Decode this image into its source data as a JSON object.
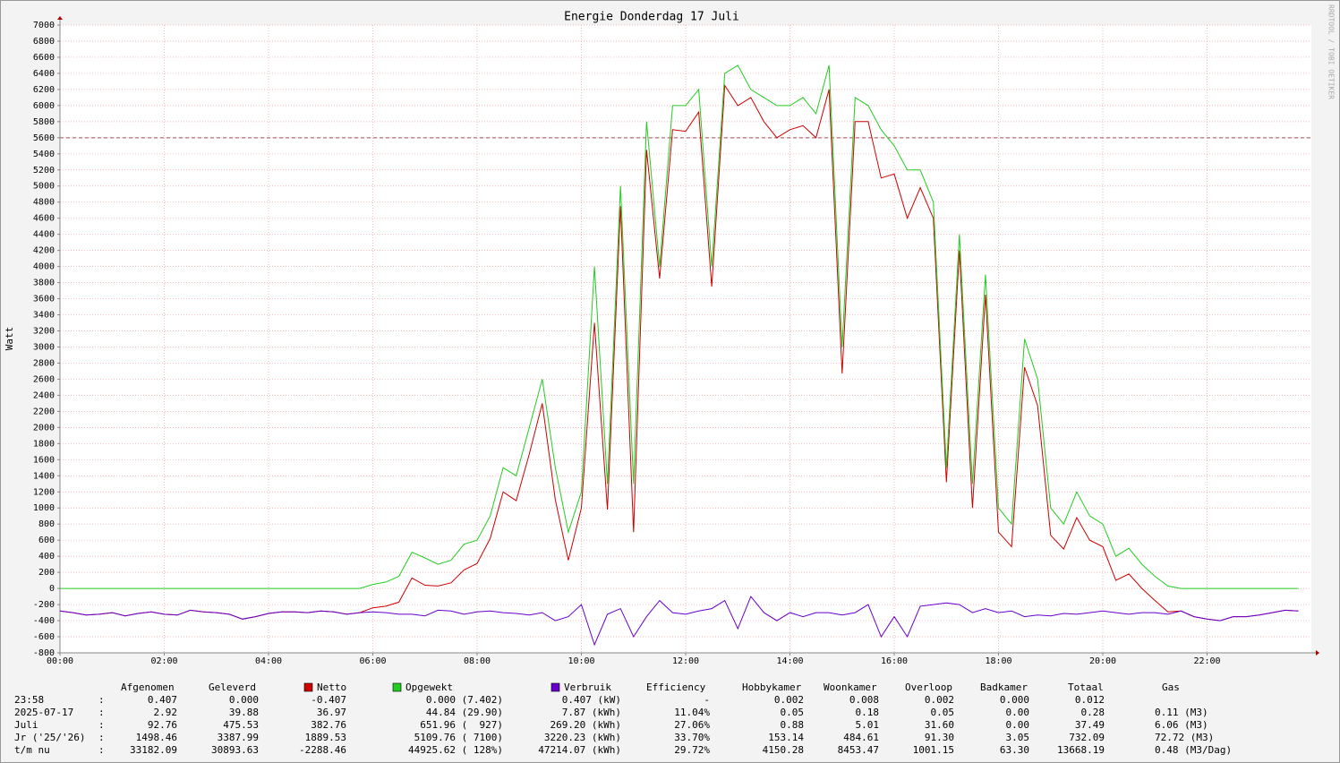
{
  "chart_data": {
    "type": "line",
    "title": "Energie Donderdag 17 Juli",
    "y_label": "Watt",
    "watermark": "RRDTOOL / TOBI OETIKER",
    "x": [
      0,
      0.25,
      0.5,
      0.75,
      1,
      1.25,
      1.5,
      1.75,
      2,
      2.25,
      2.5,
      2.75,
      3,
      3.25,
      3.5,
      3.75,
      4,
      4.25,
      4.5,
      4.75,
      5,
      5.25,
      5.5,
      5.75,
      6,
      6.25,
      6.5,
      6.75,
      7,
      7.25,
      7.5,
      7.75,
      8,
      8.25,
      8.5,
      8.75,
      9,
      9.25,
      9.5,
      9.75,
      10,
      10.25,
      10.5,
      10.75,
      11,
      11.25,
      11.5,
      11.75,
      12,
      12.25,
      12.5,
      12.75,
      13,
      13.25,
      13.5,
      13.75,
      14,
      14.25,
      14.5,
      14.75,
      15,
      15.25,
      15.5,
      15.75,
      16,
      16.25,
      16.5,
      16.75,
      17,
      17.25,
      17.5,
      17.75,
      18,
      18.25,
      18.5,
      18.75,
      19,
      19.25,
      19.5,
      19.75,
      20,
      20.25,
      20.5,
      20.75,
      21,
      21.25,
      21.5,
      21.75,
      22,
      22.25,
      22.5,
      22.75,
      23,
      23.25,
      23.5,
      23.75
    ],
    "series": [
      {
        "name": "Netto",
        "color": "#cc0000",
        "values": [
          -280,
          -300,
          -330,
          -320,
          -300,
          -340,
          -310,
          -290,
          -320,
          -330,
          -270,
          -290,
          -300,
          -320,
          -380,
          -350,
          -310,
          -290,
          -290,
          -300,
          -280,
          -290,
          -320,
          -300,
          -240,
          -220,
          -170,
          130,
          40,
          30,
          70,
          230,
          310,
          620,
          1200,
          1090,
          1670,
          2300,
          1100,
          350,
          1000,
          3300,
          980,
          4750,
          700,
          5450,
          3850,
          5700,
          5680,
          5920,
          3750,
          6250,
          6000,
          6100,
          5800,
          5600,
          5700,
          5750,
          5600,
          6200,
          2670,
          5800,
          5800,
          5100,
          5150,
          4600,
          4980,
          4600,
          1320,
          4200,
          1000,
          3650,
          700,
          520,
          2750,
          2270,
          660,
          490,
          880,
          600,
          520,
          100,
          180,
          0,
          -150,
          -290,
          -280,
          -350,
          -380,
          -400,
          -350,
          -350,
          -330,
          -300,
          -270,
          -280
        ]
      },
      {
        "name": "Opgewekt",
        "color": "#22cc22",
        "values": [
          0,
          0,
          0,
          0,
          0,
          0,
          0,
          0,
          0,
          0,
          0,
          0,
          0,
          0,
          0,
          0,
          0,
          0,
          0,
          0,
          0,
          0,
          0,
          0,
          50,
          80,
          150,
          450,
          380,
          300,
          350,
          550,
          600,
          900,
          1500,
          1400,
          2000,
          2600,
          1500,
          700,
          1200,
          4000,
          1300,
          5000,
          1300,
          5800,
          4000,
          6000,
          6000,
          6200,
          4000,
          6400,
          6500,
          6200,
          6100,
          6000,
          6000,
          6100,
          5900,
          6500,
          3000,
          6100,
          6000,
          5700,
          5500,
          5200,
          5200,
          4800,
          1500,
          4400,
          1300,
          3900,
          1000,
          800,
          3100,
          2600,
          1000,
          800,
          1200,
          900,
          800,
          400,
          500,
          300,
          150,
          30,
          0,
          0,
          0,
          0,
          0,
          0,
          0,
          0,
          0,
          0
        ]
      },
      {
        "name": "Verbruik",
        "color": "#6600cc",
        "values": [
          -280,
          -300,
          -330,
          -320,
          -300,
          -340,
          -310,
          -290,
          -320,
          -330,
          -270,
          -290,
          -300,
          -320,
          -380,
          -350,
          -310,
          -290,
          -290,
          -300,
          -280,
          -290,
          -320,
          -300,
          -290,
          -300,
          -320,
          -320,
          -340,
          -270,
          -280,
          -320,
          -290,
          -280,
          -300,
          -310,
          -330,
          -300,
          -400,
          -350,
          -200,
          -700,
          -320,
          -250,
          -600,
          -350,
          -150,
          -300,
          -320,
          -280,
          -250,
          -150,
          -500,
          -100,
          -300,
          -400,
          -300,
          -350,
          -300,
          -300,
          -330,
          -300,
          -200,
          -600,
          -350,
          -600,
          -220,
          -200,
          -180,
          -200,
          -300,
          -250,
          -300,
          -280,
          -350,
          -330,
          -340,
          -310,
          -320,
          -300,
          -280,
          -300,
          -320,
          -300,
          -300,
          -320,
          -280,
          -350,
          -380,
          -400,
          -350,
          -350,
          -330,
          -300,
          -270,
          -280
        ]
      }
    ],
    "reference_line": {
      "value": 5600,
      "color": "#a05050"
    },
    "xlim": [
      0,
      24
    ],
    "xticks": [
      {
        "value": 0,
        "label": "00:00"
      },
      {
        "value": 2,
        "label": "02:00"
      },
      {
        "value": 4,
        "label": "04:00"
      },
      {
        "value": 6,
        "label": "06:00"
      },
      {
        "value": 8,
        "label": "08:00"
      },
      {
        "value": 10,
        "label": "10:00"
      },
      {
        "value": 12,
        "label": "12:00"
      },
      {
        "value": 14,
        "label": "14:00"
      },
      {
        "value": 16,
        "label": "16:00"
      },
      {
        "value": 18,
        "label": "18:00"
      },
      {
        "value": 20,
        "label": "20:00"
      },
      {
        "value": 22,
        "label": "22:00"
      }
    ],
    "ylim": [
      -800,
      7000
    ],
    "yticks": [
      -800,
      -600,
      -400,
      -200,
      0,
      200,
      400,
      600,
      800,
      1000,
      1200,
      1400,
      1600,
      1800,
      2000,
      2200,
      2400,
      2600,
      2800,
      3000,
      3200,
      3400,
      3600,
      3800,
      4000,
      4200,
      4400,
      4600,
      4800,
      5000,
      5200,
      5400,
      5600,
      5800,
      6000,
      6200,
      6400,
      6600,
      6800,
      7000
    ],
    "grid": true
  },
  "table": {
    "headers": [
      "Afgenomen",
      "Geleverd",
      "Efficiency",
      "Hobbykamer",
      "Woonkamer",
      "Overloop",
      "Badkamer",
      "Totaal",
      "Gas"
    ],
    "rows": [
      [
        "23:58",
        ":",
        "0.407",
        "0.000",
        "-0.407",
        "0.000 (7.402)",
        "0.407 (kW)",
        "-",
        "0.002",
        "0.008",
        "0.002",
        "0.000",
        "0.012"
      ],
      [
        "2025-07-17",
        ":",
        "2.92",
        "39.88",
        "36.97",
        "44.84 (29.90)",
        "7.87 (kWh)",
        "11.04%",
        "0.05",
        "0.18",
        "0.05",
        "0.00",
        "0.28",
        "0.11 (M3)"
      ],
      [
        "Juli",
        ":",
        "92.76",
        "475.53",
        "382.76",
        "651.96 (  927)",
        "269.20 (kWh)",
        "27.06%",
        "0.88",
        "5.01",
        "31.60",
        "0.00",
        "37.49",
        "6.06 (M3)"
      ],
      [
        "Jr ('25/'26)",
        ":",
        "1498.46",
        "3387.99",
        "1889.53",
        "5109.76 ( 7100)",
        "3220.23 (kWh)",
        "33.70%",
        "153.14",
        "484.61",
        "91.30",
        "3.05",
        "732.09",
        "72.72 (M3)"
      ],
      [
        "t/m nu",
        ":",
        "33182.09",
        "30893.63",
        "-2288.46",
        "44925.62 ( 128%)",
        "47214.07 (kWh)",
        "29.72%",
        "4150.28",
        "8453.47",
        "1001.15",
        "63.30",
        "13668.19",
        "0.48 (M3/Dag)"
      ]
    ]
  }
}
